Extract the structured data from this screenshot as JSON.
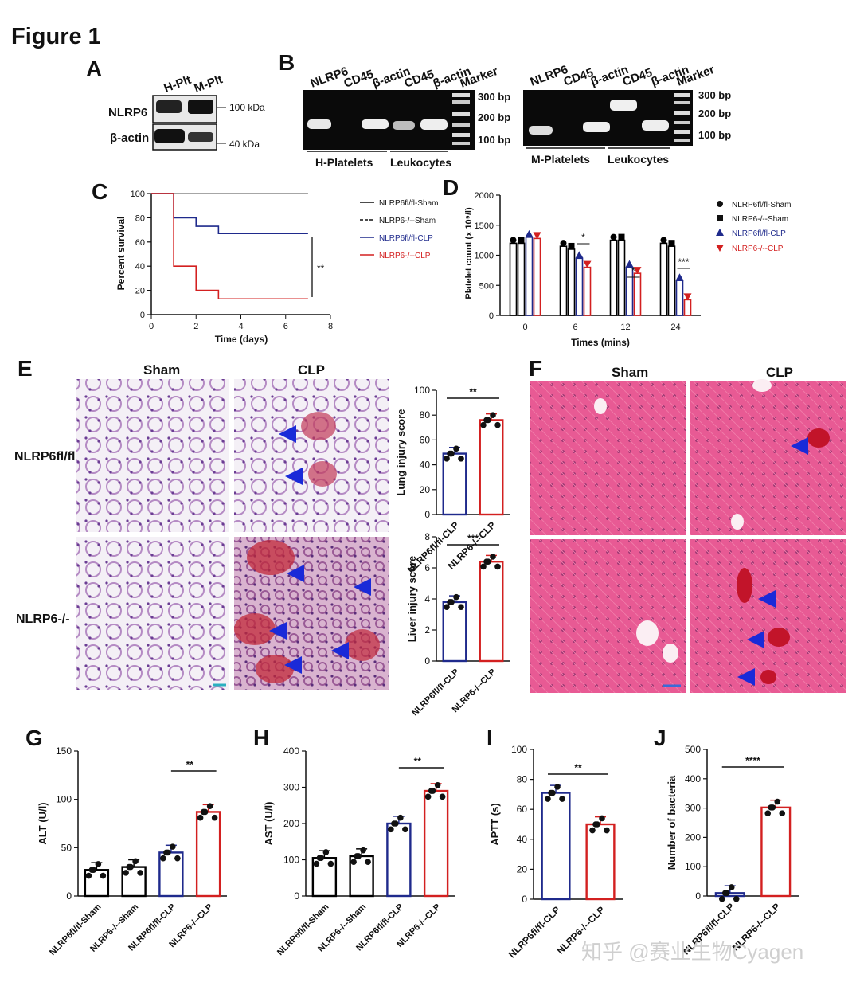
{
  "figure_title": "Figure 1",
  "watermark": "知乎 @赛业生物Cyagen",
  "panels": {
    "A": {
      "letter": "A",
      "lanes": [
        "H-Plt",
        "M-Plt"
      ],
      "rows": [
        "NLRP6",
        "β-actin"
      ],
      "markers": [
        "100 kDa",
        "40 kDa"
      ]
    },
    "B": {
      "letter": "B",
      "left_lanes": [
        "NLRP6",
        "CD45",
        "β-actin",
        "CD45",
        "β-actin",
        "Marker"
      ],
      "right_lanes": [
        "NLRP6",
        "CD45",
        "β-actin",
        "CD45",
        "β-actin",
        "Marker"
      ],
      "bp_left": [
        "300 bp",
        "200 bp",
        "100 bp"
      ],
      "bp_right": [
        "300 bp",
        "200 bp",
        "100 bp"
      ],
      "groups_left": [
        "H-Platelets",
        "Leukocytes"
      ],
      "groups_right": [
        "M-Platelets",
        "Leukocytes"
      ]
    },
    "C": {
      "letter": "C"
    },
    "D": {
      "letter": "D"
    },
    "E": {
      "letter": "E",
      "cols": [
        "Sham",
        "CLP"
      ],
      "rows": [
        "NLRP6fl/fl",
        "NLRP6-/-"
      ]
    },
    "F": {
      "letter": "F",
      "cols": [
        "Sham",
        "CLP"
      ]
    },
    "G": {
      "letter": "G"
    },
    "H": {
      "letter": "H"
    },
    "I": {
      "letter": "I"
    },
    "J": {
      "letter": "J"
    }
  },
  "chart_data": [
    {
      "id": "C",
      "type": "line",
      "xlabel": "Time (days)",
      "ylabel": "Percent survival",
      "xlim": [
        0,
        8
      ],
      "ylim": [
        0,
        100
      ],
      "xticks": [
        0,
        2,
        4,
        6,
        8
      ],
      "yticks": [
        0,
        20,
        40,
        60,
        80,
        100
      ],
      "series": [
        {
          "name": "NLRP6fl/fl-Sham",
          "color": "#999999",
          "x": [
            0,
            7
          ],
          "y": [
            100,
            100
          ]
        },
        {
          "name": "NLRP6-/--Sham",
          "color": "#999999",
          "x": [
            0,
            7
          ],
          "y": [
            100,
            100
          ]
        },
        {
          "name": "NLRP6fl/fl-CLP",
          "color": "#1f2a8c",
          "x": [
            0,
            1,
            1,
            2,
            2,
            3,
            3,
            7
          ],
          "y": [
            100,
            100,
            80,
            80,
            73,
            73,
            67,
            67
          ]
        },
        {
          "name": "NLRP6-/--CLP",
          "color": "#d32020",
          "x": [
            0,
            1,
            1,
            2,
            2,
            3,
            3,
            7
          ],
          "y": [
            100,
            100,
            40,
            40,
            20,
            20,
            13,
            13
          ]
        }
      ],
      "annotation": "**"
    },
    {
      "id": "D",
      "type": "bar",
      "xlabel": "Times (mins)",
      "ylabel": "Platelet count (x 10⁹/l)",
      "ylim": [
        0,
        2000
      ],
      "yticks": [
        0,
        500,
        1000,
        1500,
        2000
      ],
      "categories": [
        "0",
        "6",
        "12",
        "24"
      ],
      "series": [
        {
          "name": "NLRP6fl/fl-Sham",
          "color": "#000000",
          "values": [
            1200,
            1150,
            1250,
            1200
          ]
        },
        {
          "name": "NLRP6-/--Sham",
          "color": "#000000",
          "values": [
            1200,
            1100,
            1250,
            1150
          ]
        },
        {
          "name": "NLRP6fl/fl-CLP",
          "color": "#1f2a8c",
          "values": [
            1300,
            950,
            800,
            580
          ]
        },
        {
          "name": "NLRP6-/--CLP",
          "color": "#d32020",
          "values": [
            1280,
            800,
            700,
            260
          ]
        }
      ],
      "annotations": [
        "*",
        "*",
        "***"
      ]
    },
    {
      "id": "E_lung",
      "type": "bar",
      "ylabel": "Lung injury score",
      "ylim": [
        0,
        100
      ],
      "yticks": [
        0,
        20,
        40,
        60,
        80,
        100
      ],
      "categories": [
        "NLRP6fl/fl-CLP",
        "NLRP6-/--CLP"
      ],
      "values": [
        49,
        76
      ],
      "colors": [
        "#1f2a8c",
        "#d32020"
      ],
      "annotation": "**"
    },
    {
      "id": "E_liver",
      "type": "bar",
      "ylabel": "Liver injury score",
      "ylim": [
        0,
        8
      ],
      "yticks": [
        0,
        2,
        4,
        6,
        8
      ],
      "categories": [
        "NLRP6fl/fl-CLP",
        "NLRP6-/--CLP"
      ],
      "values": [
        3.8,
        6.4
      ],
      "colors": [
        "#1f2a8c",
        "#d32020"
      ],
      "annotation": "***"
    },
    {
      "id": "G",
      "type": "bar",
      "ylabel": "ALT (U/l)",
      "ylim": [
        0,
        150
      ],
      "yticks": [
        0,
        50,
        100,
        150
      ],
      "categories": [
        "NLRP6fl/fl-Sham",
        "NLRP6-/--Sham",
        "NLRP6fl/fl-CLP",
        "NLRP6-/--CLP"
      ],
      "values": [
        27,
        30,
        45,
        87
      ],
      "colors": [
        "#000000",
        "#000000",
        "#1f2a8c",
        "#d32020"
      ],
      "annotation": "**"
    },
    {
      "id": "H",
      "type": "bar",
      "ylabel": "AST (U/l)",
      "ylim": [
        0,
        400
      ],
      "yticks": [
        0,
        100,
        200,
        300,
        400
      ],
      "categories": [
        "NLRP6fl/fl-Sham",
        "NLRP6-/--Sham",
        "NLRP6fl/fl-CLP",
        "NLRP6-/--CLP"
      ],
      "values": [
        105,
        110,
        200,
        290
      ],
      "colors": [
        "#000000",
        "#000000",
        "#1f2a8c",
        "#d32020"
      ],
      "annotation": "**"
    },
    {
      "id": "I",
      "type": "bar",
      "ylabel": "APTT (s)",
      "ylim": [
        0,
        100
      ],
      "yticks": [
        0,
        20,
        40,
        60,
        80,
        100
      ],
      "categories": [
        "NLRP6fl/fl-CLP",
        "NLRP6-/--CLP"
      ],
      "values": [
        71,
        50
      ],
      "colors": [
        "#1f2a8c",
        "#d32020"
      ],
      "annotation": "**"
    },
    {
      "id": "J",
      "type": "bar",
      "ylabel": "Number of bacteria",
      "ylim": [
        0,
        500
      ],
      "yticks": [
        0,
        100,
        200,
        300,
        400,
        500
      ],
      "categories": [
        "NLRP6fl/fl-CLP",
        "NLRP6-/--CLP"
      ],
      "values": [
        10,
        302
      ],
      "colors": [
        "#1f2a8c",
        "#d32020"
      ],
      "annotation": "****"
    }
  ]
}
